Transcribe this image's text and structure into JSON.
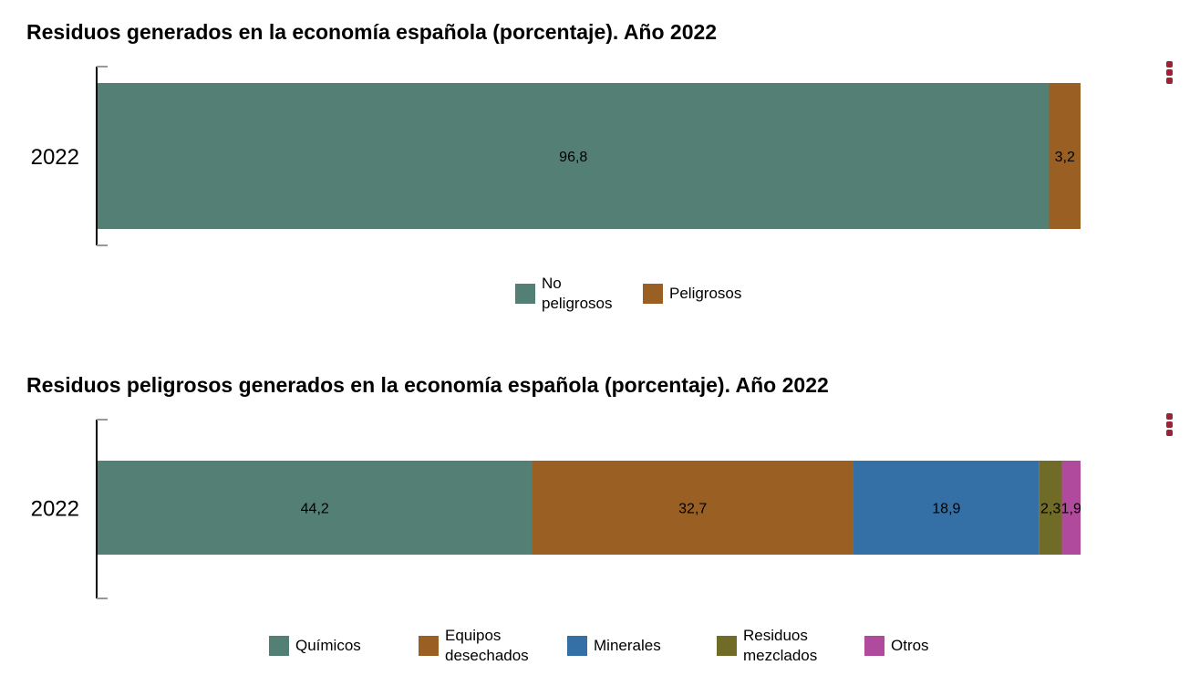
{
  "menu_icon": "kebab-vertical-icon",
  "menu_color": "#9b2335",
  "chart_data": [
    {
      "type": "bar",
      "orientation": "horizontal",
      "stacked": true,
      "title": "Residuos generados en la economía española (porcentaje). Año 2022",
      "categories": [
        "2022"
      ],
      "xlim": [
        0,
        100
      ],
      "legend_position": "bottom",
      "series": [
        {
          "name": "No peligrosos",
          "legend_lines": [
            "No",
            "peligrosos"
          ],
          "values": [
            96.8
          ],
          "label": "96,8",
          "color": "#547f75"
        },
        {
          "name": "Peligrosos",
          "legend_lines": [
            "Peligrosos"
          ],
          "values": [
            3.2
          ],
          "label": "3,2",
          "color": "#9a5f23"
        }
      ]
    },
    {
      "type": "bar",
      "orientation": "horizontal",
      "stacked": true,
      "title": "Residuos peligrosos generados en la economía española (porcentaje). Año 2022",
      "categories": [
        "2022"
      ],
      "xlim": [
        0,
        100
      ],
      "legend_position": "bottom",
      "series": [
        {
          "name": "Químicos",
          "legend_lines": [
            "Químicos"
          ],
          "values": [
            44.2
          ],
          "label": "44,2",
          "color": "#547f75"
        },
        {
          "name": "Equipos desechados",
          "legend_lines": [
            "Equipos",
            "desechados"
          ],
          "values": [
            32.7
          ],
          "label": "32,7",
          "color": "#9a5f23"
        },
        {
          "name": "Minerales",
          "legend_lines": [
            "Minerales"
          ],
          "values": [
            18.9
          ],
          "label": "18,9",
          "color": "#3470a6"
        },
        {
          "name": "Residuos mezclados",
          "legend_lines": [
            "Residuos",
            "mezclados"
          ],
          "values": [
            2.3
          ],
          "label": "2,3",
          "color": "#706b27"
        },
        {
          "name": "Otros",
          "legend_lines": [
            "Otros"
          ],
          "values": [
            1.9
          ],
          "label": "1,9",
          "color": "#b04a9c"
        }
      ]
    }
  ]
}
